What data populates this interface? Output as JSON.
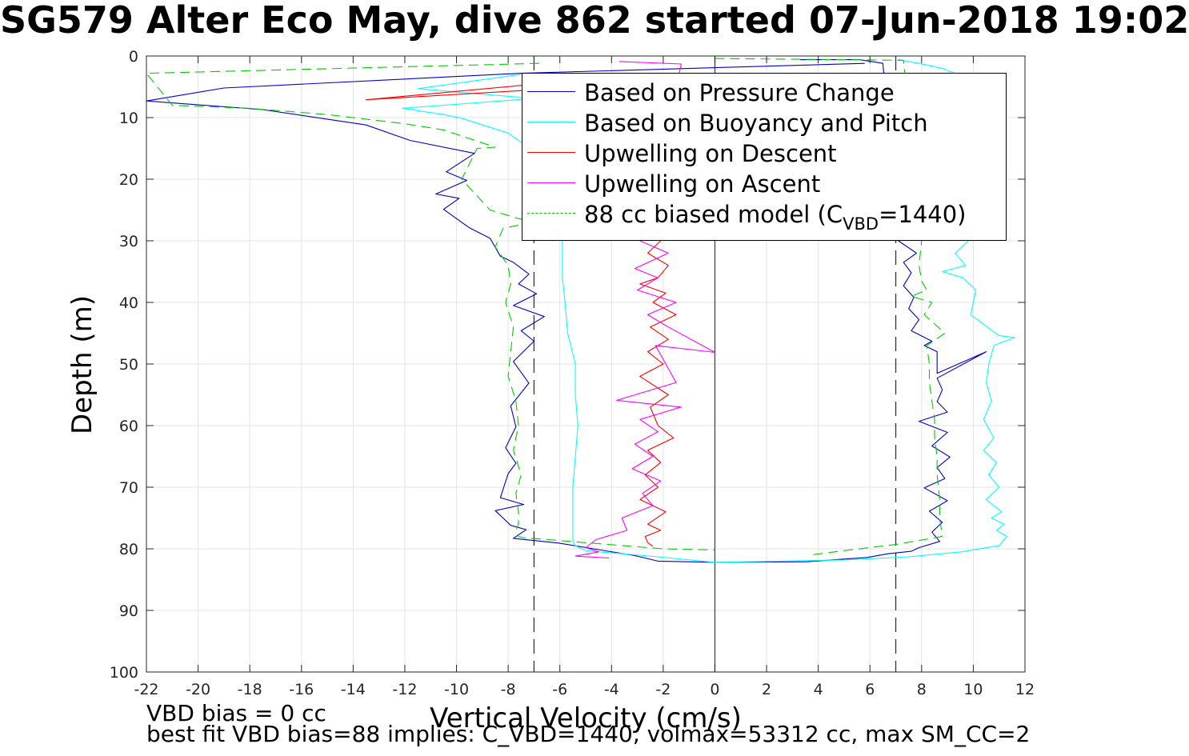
{
  "title": "SG579 Alter Eco May, dive 862 started 07-Jun-2018 19:02",
  "notes": {
    "vbd_bias": "VBD bias = 0 cc",
    "best_fit": "best fit VBD bias=88 implies: C_VBD=1440, volmax=53312 cc, max SM_CC=2"
  },
  "legend": {
    "items": [
      {
        "label": "Based on Pressure Change",
        "color": "#0000cc",
        "style": "solid"
      },
      {
        "label": "Based on Buoyancy and Pitch",
        "color": "#00ffff",
        "style": "solid"
      },
      {
        "label": "Upwelling on Descent",
        "color": "#ff0000",
        "style": "solid"
      },
      {
        "label": "Upwelling on Ascent",
        "color": "#ff00ff",
        "style": "solid"
      },
      {
        "label_main": "88 cc biased model (C",
        "label_sub": "VBD",
        "label_tail": "=1440)",
        "color": "#00cc00",
        "style": "dashed"
      }
    ]
  },
  "chart_data": {
    "type": "line",
    "xlabel": "Vertical Velocity (cm/s)",
    "ylabel": "Depth (m)",
    "xlim": [
      -22,
      12
    ],
    "ylim": [
      0,
      100
    ],
    "y_reversed": true,
    "grid": true,
    "legend_position": "top-right",
    "xticks": [
      -22,
      -20,
      -18,
      -16,
      -14,
      -12,
      -10,
      -8,
      -6,
      -4,
      -2,
      0,
      2,
      4,
      6,
      8,
      10,
      12
    ],
    "yticks": [
      0,
      10,
      20,
      30,
      40,
      50,
      60,
      70,
      80,
      90,
      100
    ],
    "reference_lines": [
      {
        "x": -7,
        "style": "dashed"
      },
      {
        "x": 7,
        "style": "dashed"
      },
      {
        "x": 0,
        "style": "solid"
      }
    ],
    "series": [
      {
        "name": "Based on Pressure Change",
        "color": "#0000cc",
        "style": "solid",
        "x": [
          5.8,
          -7.5,
          -19,
          -22,
          -17.5,
          -13.5,
          -11.8,
          -9.3,
          -10.4,
          -9.6,
          -10.8,
          -9.9,
          -10.5,
          -9.5,
          -8.7,
          -8.3,
          -7.8,
          -7.2,
          -7.6,
          -6.9,
          -7.8,
          -6.6,
          -7.5,
          -7,
          -7.8,
          -7.2,
          -7.9,
          -7.7,
          -8.1,
          -7.7,
          -8,
          -8.3,
          -7.4,
          -8.5,
          -7.9,
          -7.3,
          -7.8,
          -6,
          -3.1,
          -2.2,
          0
        ],
        "y": [
          1.2,
          2.8,
          5.2,
          7.3,
          8.7,
          11.2,
          13.7,
          15.8,
          18.8,
          20.2,
          22.4,
          23.1,
          24.9,
          27.9,
          29.6,
          32.5,
          33.5,
          35.4,
          37,
          38.6,
          40.5,
          42.3,
          44.6,
          46.3,
          49.6,
          53.1,
          56.8,
          60.2,
          63.6,
          66.1,
          67.8,
          71.7,
          72.8,
          73.8,
          76.2,
          76.9,
          78.3,
          79.1,
          81.1,
          82,
          82.2
        ]
      },
      {
        "name": "Based on Pressure Change",
        "color": "#0000cc",
        "style": "solid",
        "x": [
          3.3,
          5.6,
          6.5,
          7.1,
          7.8,
          7.3,
          7.6,
          7.3,
          7.7,
          7.5,
          7.9,
          7.6,
          8.4,
          8.1,
          8.6,
          8.6,
          10.5,
          8.6,
          8.8,
          8.6,
          9,
          7.9,
          9,
          8.4,
          9.1,
          8.6,
          8.9,
          8.1,
          9,
          8.3,
          8.8,
          8.4,
          8.7,
          7.9,
          7.6,
          6.7,
          5.9,
          4.5,
          3.6,
          0
        ],
        "y": [
          0.6,
          0.6,
          1.2,
          30,
          32,
          33.5,
          35.2,
          37.3,
          39.2,
          41,
          42.8,
          44.6,
          46.3,
          47,
          48,
          51.5,
          48,
          52.3,
          54.2,
          56.1,
          57.8,
          59.3,
          61.1,
          63.3,
          65.1,
          66.8,
          68.6,
          70.1,
          72.2,
          73.9,
          75.7,
          77.3,
          78.8,
          79.8,
          80.4,
          80.8,
          81.4,
          81.8,
          82.1,
          82.2
        ]
      },
      {
        "name": "Based on Buoyancy and Pitch",
        "color": "#00ffff",
        "style": "solid",
        "x": [
          -7.2,
          -11.5,
          -7,
          -12.1,
          -10.5,
          -9.8,
          -8,
          -7.3,
          -7.2,
          -6.3,
          -5.9,
          -5.9,
          -5.8,
          -5.7,
          -5.4,
          -5.4,
          -5.3,
          -5.4,
          -5.5,
          -5.5,
          -5.5,
          -5.5,
          -5.4,
          -5,
          -2.2,
          0
        ],
        "y": [
          2.8,
          5.3,
          6.9,
          8.5,
          9.5,
          10.1,
          12.5,
          14.6,
          17,
          23,
          30,
          36,
          40,
          45,
          50,
          55,
          60,
          65,
          70,
          75,
          78.3,
          78.8,
          79.5,
          80.3,
          81.3,
          82.2
        ]
      },
      {
        "name": "Based on Buoyancy and Pitch",
        "color": "#00ffff",
        "style": "solid",
        "x": [
          7.1,
          7.9,
          8.8,
          9.4,
          9.8,
          9.9,
          9.2,
          10,
          10.2,
          10.1,
          9.6,
          10.5,
          9.3,
          8.8,
          9.8,
          9.3,
          9.7,
          8.8,
          9.6,
          10.1,
          9.9,
          11,
          11.6,
          10.8,
          10.6,
          10.5,
          10.7,
          10.4,
          10.8,
          10.4,
          10.9,
          10.6,
          11,
          10.5,
          11.1,
          10.7,
          11.2,
          10.9,
          11.3,
          11,
          9.5,
          7.5,
          5,
          2.5,
          0
        ],
        "y": [
          0.6,
          1.2,
          2,
          3,
          5,
          8,
          10,
          12,
          15,
          18,
          22,
          25,
          27,
          29,
          30,
          32,
          34,
          35,
          36,
          38,
          42,
          45.4,
          45.7,
          47,
          50,
          53,
          56,
          59,
          62,
          64,
          66,
          68,
          70,
          72,
          74,
          75,
          76,
          77,
          78,
          79.5,
          80.5,
          81.3,
          81.8,
          82,
          82.2
        ]
      },
      {
        "name": "Upwelling on Descent",
        "color": "#ff0000",
        "style": "solid",
        "x": [
          -2.4,
          -13.5,
          -7,
          -5.1,
          -2.5,
          -1.5,
          -2.1,
          -2.6,
          -1.8,
          -2.2,
          -2.9,
          -1.9,
          -2.4,
          -1.5,
          -2.5,
          -1.8,
          -2.6,
          -2.0,
          -2.9,
          -1.8,
          -2.5,
          -2.2,
          -1.6,
          -2.6,
          -2.1,
          -2.7,
          -2.2,
          -2.9,
          -1.9,
          -2.6,
          -2.1,
          -2.7,
          -2.6,
          -2.4
        ],
        "y": [
          2.8,
          7.1,
          5.5,
          4.8,
          3.2,
          3.0,
          30,
          32,
          34,
          36,
          37,
          38.5,
          40,
          42,
          44,
          46,
          48,
          50,
          52,
          55,
          57,
          60,
          62,
          64,
          66,
          68,
          70,
          72,
          74,
          76,
          77,
          78,
          79,
          79.6
        ]
      },
      {
        "name": "Upwelling on Ascent",
        "color": "#ff00ff",
        "style": "solid",
        "x": [
          -3.7,
          -1.3,
          -2.9,
          -1.8,
          -3.1,
          -2.2,
          -3,
          -1.5,
          -2.6,
          -1.8,
          0,
          -2.3,
          -1.5,
          -3.8,
          -1.3,
          -2.9,
          -2.2,
          -3.1,
          -2.4,
          -3.2,
          -2.1,
          -2.8,
          -2.4,
          -3.6,
          -3.4,
          -4.6,
          -5.0,
          -4.5,
          -5.4,
          -4.1
        ],
        "y": [
          0.9,
          1.3,
          30,
          32,
          34.5,
          36,
          38,
          40,
          42,
          44,
          48.1,
          47,
          53,
          55.9,
          57,
          59,
          61,
          63,
          65,
          67,
          69,
          71,
          73,
          75,
          77,
          78.5,
          79.8,
          80.5,
          81.2,
          81.5
        ]
      },
      {
        "name": "88 cc biased model (CVBD=1440)",
        "color": "#00cc00",
        "style": "dashed",
        "x": [
          -6.8,
          -22,
          -21,
          -18,
          -15,
          -12,
          -10.5,
          -8.5,
          -9.2,
          -9.8,
          -8.7,
          -7.1,
          -8.2,
          -8.5,
          -8.0,
          -7.9,
          -8.1,
          -7.8,
          -7.9,
          -8.0,
          -7.7,
          -7.6,
          -7.8,
          -7.5,
          -7.7,
          -7.6,
          -7.6,
          -7.7,
          -7.6,
          -7.4,
          -5,
          -2,
          0
        ],
        "y": [
          1.2,
          2.8,
          8,
          8.5,
          9.5,
          11,
          12,
          14.8,
          15,
          20,
          25,
          27,
          28,
          31,
          34,
          37,
          40,
          44,
          48,
          52,
          56,
          60,
          64,
          68,
          71,
          74,
          76,
          77,
          78,
          78.2,
          79,
          80,
          80.2
        ]
      },
      {
        "name": "88 cc biased model (CVBD=1440)",
        "color": "#00cc00",
        "style": "dashed",
        "x": [
          0,
          5,
          7.3,
          8,
          7.9,
          8,
          8.2,
          7.6,
          8.4,
          8.1,
          8.9,
          8.2,
          8.3,
          8.3,
          8.4,
          8.5,
          8.5,
          8.6,
          8.6,
          8.7,
          8.7,
          8.8,
          7,
          5,
          3.7
        ],
        "y": [
          0.4,
          0.6,
          0.7,
          30,
          34,
          36.5,
          38,
          39,
          40,
          42,
          45,
          47,
          50,
          53,
          56,
          59,
          62,
          65,
          68,
          72,
          75,
          78,
          79.3,
          80.3,
          81
        ]
      }
    ]
  }
}
